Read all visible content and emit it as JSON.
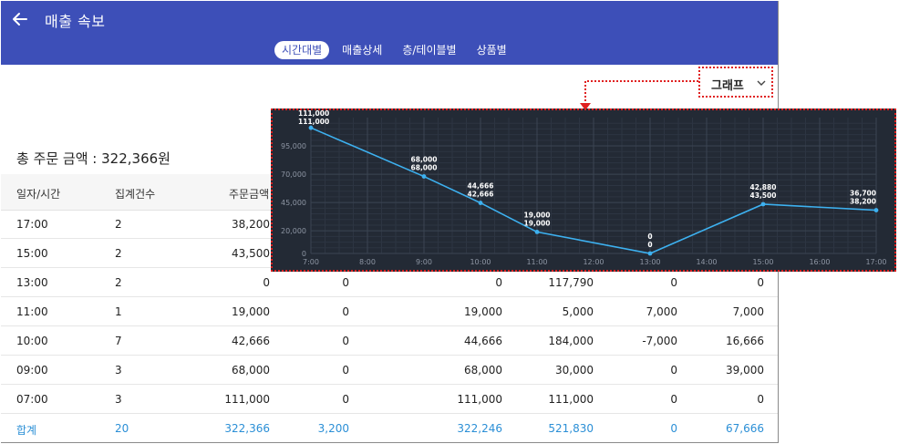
{
  "app": {
    "title": "매출 속보",
    "tabs": [
      {
        "label": "시간대별",
        "active": true
      },
      {
        "label": "매출상세",
        "active": false
      },
      {
        "label": "층/테이블별",
        "active": false
      },
      {
        "label": "상품별",
        "active": false
      }
    ]
  },
  "summary": {
    "total_text": "총 주문 금액 : 322,366원"
  },
  "table": {
    "headers": [
      "일자/시간",
      "집계건수",
      "주문금액"
    ],
    "rows": [
      {
        "time": "17:00",
        "count": "2",
        "order": "38,200",
        "c4": "",
        "c5": "",
        "c6": "",
        "c7": "",
        "c8": ""
      },
      {
        "time": "15:00",
        "count": "2",
        "order": "43,500",
        "c4": "",
        "c5": "",
        "c6": "",
        "c7": "",
        "c8": ""
      },
      {
        "time": "13:00",
        "count": "2",
        "order": "0",
        "c4": "0",
        "c5": "0",
        "c6": "117,790",
        "c7": "0",
        "c8": "0"
      },
      {
        "time": "11:00",
        "count": "1",
        "order": "19,000",
        "c4": "0",
        "c5": "19,000",
        "c6": "5,000",
        "c7": "7,000",
        "c8": "7,000"
      },
      {
        "time": "10:00",
        "count": "7",
        "order": "42,666",
        "c4": "0",
        "c5": "44,666",
        "c6": "184,000",
        "c7": "-7,000",
        "c8": "16,666"
      },
      {
        "time": "09:00",
        "count": "3",
        "order": "68,000",
        "c4": "0",
        "c5": "68,000",
        "c6": "30,000",
        "c7": "0",
        "c8": "39,000"
      },
      {
        "time": "07:00",
        "count": "3",
        "order": "111,000",
        "c4": "0",
        "c5": "111,000",
        "c6": "111,000",
        "c7": "0",
        "c8": "0"
      }
    ],
    "sum_row": {
      "label": "합계",
      "count": "20",
      "order": "322,366",
      "c4": "3,200",
      "c5": "322,246",
      "c6": "521,830",
      "c7": "0",
      "c8": "67,666"
    }
  },
  "dropdown": {
    "label": "그래프"
  },
  "colors": {
    "appbar": "#3d4fb8",
    "chart_bg": "#232a35",
    "line": "#3db1f0",
    "sum_text": "#2b8fd6",
    "callout": "#e02020"
  },
  "chart_data": {
    "type": "line",
    "x_ticks": [
      "7:00",
      "8:00",
      "9:00",
      "10:00",
      "11:00",
      "12:00",
      "13:00",
      "14:00",
      "15:00",
      "16:00",
      "17:00"
    ],
    "y_ticks": [
      "0",
      "20,000",
      "45,000",
      "70,000",
      "95,000"
    ],
    "ylim": [
      0,
      120000
    ],
    "points": [
      {
        "x": "7:00",
        "y": 111000,
        "labels": [
          "111,000",
          "111,000"
        ]
      },
      {
        "x": "9:00",
        "y": 68000,
        "labels": [
          "68,000",
          "68,000"
        ]
      },
      {
        "x": "10:00",
        "y": 44666,
        "labels": [
          "44,666",
          "42,666"
        ]
      },
      {
        "x": "11:00",
        "y": 19000,
        "labels": [
          "19,000",
          "19,000"
        ]
      },
      {
        "x": "13:00",
        "y": 0,
        "labels": [
          "0",
          "0"
        ]
      },
      {
        "x": "15:00",
        "y": 43500,
        "labels": [
          "42,880",
          "43,500"
        ]
      },
      {
        "x": "17:00",
        "y": 38200,
        "labels": [
          "36,700",
          "38,200"
        ]
      }
    ]
  }
}
